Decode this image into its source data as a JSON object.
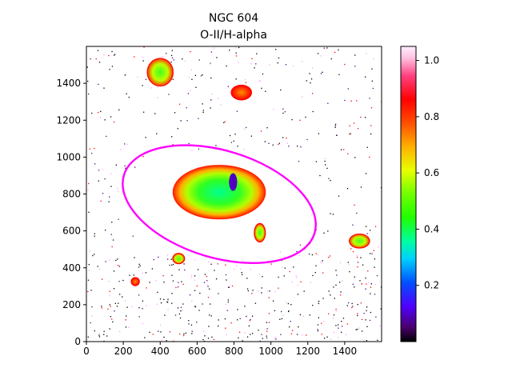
{
  "figure": {
    "title_line1": "NGC 604",
    "title_line2": "O-II/H-alpha"
  },
  "chart_data": {
    "type": "heatmap",
    "title": "NGC 604",
    "subtitle": "O-II/H-alpha",
    "xlabel": "",
    "ylabel": "",
    "xlim": [
      0,
      1600
    ],
    "ylim": [
      0,
      1600
    ],
    "x_ticks": [
      "0",
      "200",
      "400",
      "600",
      "800",
      "1000",
      "1200",
      "1400"
    ],
    "y_ticks": [
      "0",
      "200",
      "400",
      "600",
      "800",
      "1000",
      "1200",
      "1400"
    ],
    "colormap": "gist_ncar-like (black, purple, blue, cyan, green, yellow, orange, red, white)",
    "colorbar": {
      "range": [
        0.0,
        1.05
      ],
      "ticks": [
        "0.2",
        "0.4",
        "0.6",
        "0.8",
        "1.0"
      ],
      "tick_values": [
        0.2,
        0.4,
        0.6,
        0.8,
        1.0
      ]
    },
    "ellipse": {
      "color": "#ff00ff",
      "center": [
        720,
        745
      ],
      "semi_major": 540,
      "semi_minor": 290,
      "angle_deg": 17
    },
    "regions": [
      {
        "name": "main-nebula",
        "x": 720,
        "y": 810,
        "value": 0.42
      },
      {
        "name": "core",
        "x": 795,
        "y": 865,
        "value": 0.12
      },
      {
        "name": "top-left-knot",
        "x": 400,
        "y": 1460,
        "value": 0.45
      },
      {
        "name": "top-knot-2",
        "x": 840,
        "y": 1350,
        "value": 0.75
      },
      {
        "name": "right-knot",
        "x": 1480,
        "y": 545,
        "value": 0.45
      },
      {
        "name": "lower-knot",
        "x": 940,
        "y": 590,
        "value": 0.5
      },
      {
        "name": "small-knot-left",
        "x": 500,
        "y": 450,
        "value": 0.5
      },
      {
        "name": "small-knot-bottom",
        "x": 265,
        "y": 325,
        "value": 0.65
      }
    ],
    "grid": false,
    "legend": "colorbar right"
  }
}
